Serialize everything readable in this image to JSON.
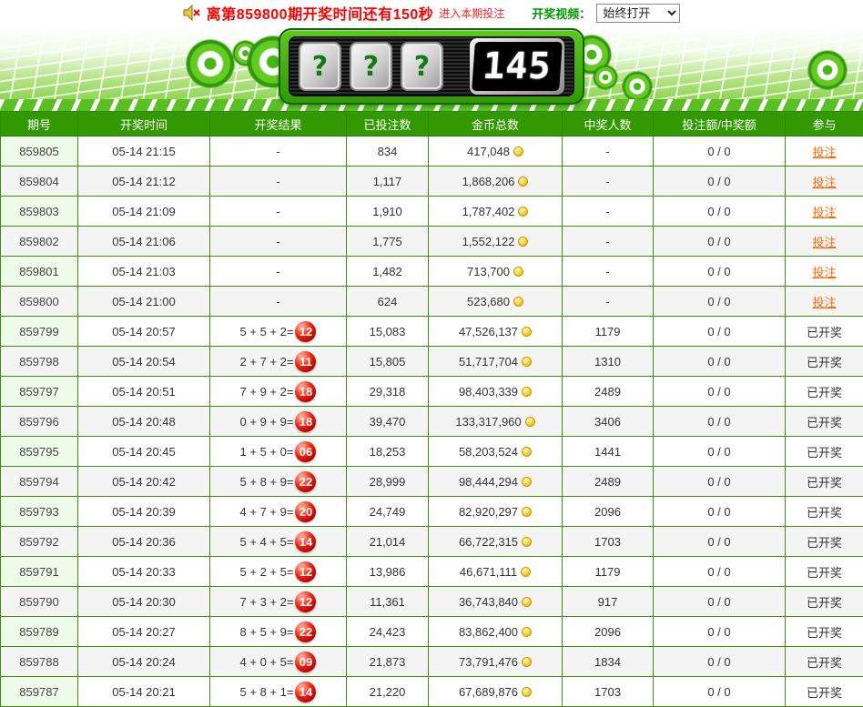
{
  "colors": {
    "header_green": "#339902",
    "border_green": "#3f8e12",
    "light_green_cell": "#effbe9",
    "alt_row_gray": "#f4f4f4",
    "countdown_red": "#ff0000",
    "link_orange": "#ff6600",
    "ball_red": "#cc0000",
    "coin_gold": "#fac825"
  },
  "topbar": {
    "speaker_icon": "muted-speaker-icon",
    "countdown_text": "离第859800期开奖时间还有150秒",
    "enter_bet_label": "进入本期投注",
    "video_label": "开奖视频：",
    "video_select_value": "始终打开"
  },
  "banner": {
    "reel_placeholder": "?",
    "countdown_display": "145"
  },
  "table": {
    "columns": [
      "期号",
      "开奖时间",
      "开奖结果",
      "已投注数",
      "金币总数",
      "中奖人数",
      "投注额/中奖额",
      "参与"
    ],
    "bet_link_label": "投注",
    "drawn_label": "已开奖",
    "empty_value": "-",
    "rows": [
      {
        "period": "859805",
        "time": "05-14 21:15",
        "result": "-",
        "sum": "",
        "bets": "834",
        "coins": "417,048",
        "winners": "-",
        "ratio": "0 / 0",
        "status": "betting"
      },
      {
        "period": "859804",
        "time": "05-14 21:12",
        "result": "-",
        "sum": "",
        "bets": "1,117",
        "coins": "1,868,206",
        "winners": "-",
        "ratio": "0 / 0",
        "status": "betting"
      },
      {
        "period": "859803",
        "time": "05-14 21:09",
        "result": "-",
        "sum": "",
        "bets": "1,910",
        "coins": "1,787,402",
        "winners": "-",
        "ratio": "0 / 0",
        "status": "betting"
      },
      {
        "period": "859802",
        "time": "05-14 21:06",
        "result": "-",
        "sum": "",
        "bets": "1,775",
        "coins": "1,552,122",
        "winners": "-",
        "ratio": "0 / 0",
        "status": "betting"
      },
      {
        "period": "859801",
        "time": "05-14 21:03",
        "result": "-",
        "sum": "",
        "bets": "1,482",
        "coins": "713,700",
        "winners": "-",
        "ratio": "0 / 0",
        "status": "betting"
      },
      {
        "period": "859800",
        "time": "05-14 21:00",
        "result": "-",
        "sum": "",
        "bets": "624",
        "coins": "523,680",
        "winners": "-",
        "ratio": "0 / 0",
        "status": "betting"
      },
      {
        "period": "859799",
        "time": "05-14 20:57",
        "result": "5 + 5 + 2=",
        "sum": "12",
        "bets": "15,083",
        "coins": "47,526,137",
        "winners": "1179",
        "ratio": "0 / 0",
        "status": "drawn"
      },
      {
        "period": "859798",
        "time": "05-14 20:54",
        "result": "2 + 7 + 2=",
        "sum": "11",
        "bets": "15,805",
        "coins": "51,717,704",
        "winners": "1310",
        "ratio": "0 / 0",
        "status": "drawn"
      },
      {
        "period": "859797",
        "time": "05-14 20:51",
        "result": "7 + 9 + 2=",
        "sum": "18",
        "bets": "29,318",
        "coins": "98,403,339",
        "winners": "2489",
        "ratio": "0 / 0",
        "status": "drawn"
      },
      {
        "period": "859796",
        "time": "05-14 20:48",
        "result": "0 + 9 + 9=",
        "sum": "18",
        "bets": "39,470",
        "coins": "133,317,960",
        "winners": "3406",
        "ratio": "0 / 0",
        "status": "drawn"
      },
      {
        "period": "859795",
        "time": "05-14 20:45",
        "result": "1 + 5 + 0=",
        "sum": "06",
        "bets": "18,253",
        "coins": "58,203,524",
        "winners": "1441",
        "ratio": "0 / 0",
        "status": "drawn"
      },
      {
        "period": "859794",
        "time": "05-14 20:42",
        "result": "5 + 8 + 9=",
        "sum": "22",
        "bets": "28,999",
        "coins": "98,444,294",
        "winners": "2489",
        "ratio": "0 / 0",
        "status": "drawn"
      },
      {
        "period": "859793",
        "time": "05-14 20:39",
        "result": "4 + 7 + 9=",
        "sum": "20",
        "bets": "24,749",
        "coins": "82,920,297",
        "winners": "2096",
        "ratio": "0 / 0",
        "status": "drawn"
      },
      {
        "period": "859792",
        "time": "05-14 20:36",
        "result": "5 + 4 + 5=",
        "sum": "14",
        "bets": "21,014",
        "coins": "66,722,315",
        "winners": "1703",
        "ratio": "0 / 0",
        "status": "drawn"
      },
      {
        "period": "859791",
        "time": "05-14 20:33",
        "result": "5 + 2 + 5=",
        "sum": "12",
        "bets": "13,986",
        "coins": "46,671,111",
        "winners": "1179",
        "ratio": "0 / 0",
        "status": "drawn"
      },
      {
        "period": "859790",
        "time": "05-14 20:30",
        "result": "7 + 3 + 2=",
        "sum": "12",
        "bets": "11,361",
        "coins": "36,743,840",
        "winners": "917",
        "ratio": "0 / 0",
        "status": "drawn"
      },
      {
        "period": "859789",
        "time": "05-14 20:27",
        "result": "8 + 5 + 9=",
        "sum": "22",
        "bets": "24,423",
        "coins": "83,862,400",
        "winners": "2096",
        "ratio": "0 / 0",
        "status": "drawn"
      },
      {
        "period": "859788",
        "time": "05-14 20:24",
        "result": "4 + 0 + 5=",
        "sum": "09",
        "bets": "21,873",
        "coins": "73,791,476",
        "winners": "1834",
        "ratio": "0 / 0",
        "status": "drawn"
      },
      {
        "period": "859787",
        "time": "05-14 20:21",
        "result": "5 + 8 + 1=",
        "sum": "14",
        "bets": "21,220",
        "coins": "67,689,876",
        "winners": "1703",
        "ratio": "0 / 0",
        "status": "drawn"
      }
    ]
  }
}
